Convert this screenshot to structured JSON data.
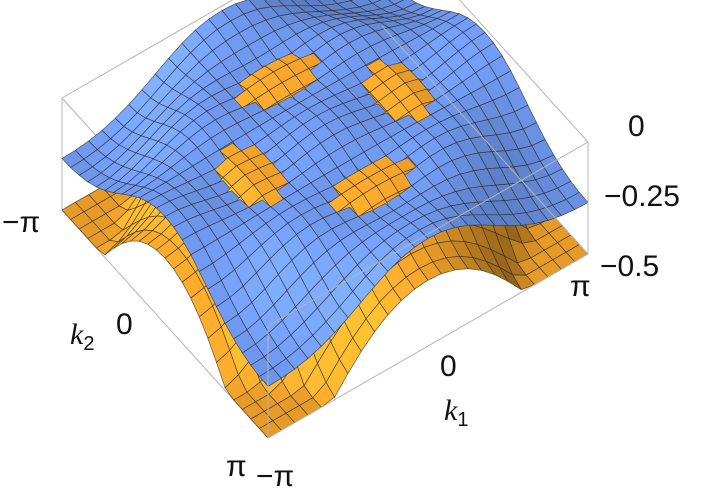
{
  "chart_data": {
    "type": "surface3d",
    "title": "",
    "xlabel": "k",
    "xlabel_sub": "1",
    "ylabel": "k",
    "ylabel_sub": "2",
    "zlabel": "",
    "x_ticks": [
      "−π",
      "0",
      "π"
    ],
    "y_ticks": [
      "−π",
      "0",
      "π"
    ],
    "z_ticks": [
      "0",
      "−0.25",
      "−0.5"
    ],
    "xlim": [
      -3.1416,
      3.1416
    ],
    "ylim": [
      -3.1416,
      3.1416
    ],
    "zlim": [
      -0.5,
      0
    ],
    "grid_divisions": 24,
    "series": [
      {
        "surface": "blue",
        "color": "#6c94e8",
        "description_values": "z(k1,k2): near 0 over most of the zone with shallow ripples, dipping to about -0.3 at the corners"
      },
      {
        "surface": "orange",
        "color": "#f2a22a",
        "description_values": "z(k1,k2): about -0.02 on a ring ridge, dropping to about -0.5 at the corners (±π,±π)"
      }
    ],
    "colors": {
      "blue": "#6c94e8",
      "orange": "#f2a22a",
      "mesh": "#2a2a2a",
      "box": "#b4b4b4"
    }
  }
}
